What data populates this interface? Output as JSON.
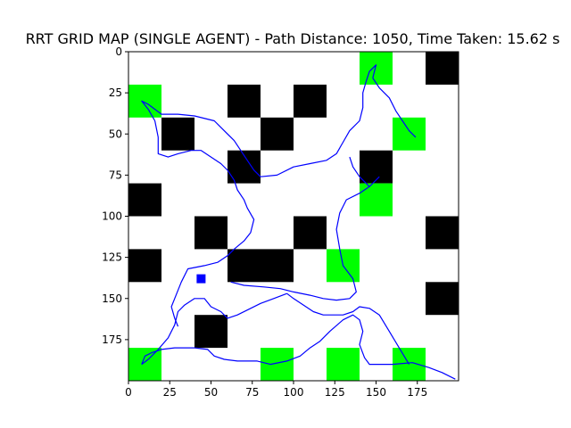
{
  "chart_data": {
    "type": "heatmap",
    "title": "RRT GRID MAP (SINGLE AGENT) - Path Distance: 1050, Time Taken: 15.62 s",
    "xlabel": "",
    "ylabel": "",
    "xlim": [
      0,
      200
    ],
    "ylim": [
      200,
      0
    ],
    "y_inverted": true,
    "grid": false,
    "cell_size": 20,
    "xticks": [
      0,
      25,
      50,
      75,
      100,
      125,
      150,
      175
    ],
    "yticks": [
      0,
      25,
      50,
      75,
      100,
      125,
      150,
      175
    ],
    "colors": {
      "obstacle": "#000000",
      "goal": "#00ff00",
      "free": "#ffffff",
      "path": "#0000ff",
      "agent": "#0000ff"
    },
    "obstacles": [
      [
        180,
        0
      ],
      [
        60,
        20
      ],
      [
        100,
        20
      ],
      [
        20,
        40
      ],
      [
        80,
        40
      ],
      [
        60,
        60
      ],
      [
        140,
        60
      ],
      [
        0,
        80
      ],
      [
        40,
        100
      ],
      [
        100,
        100
      ],
      [
        180,
        100
      ],
      [
        0,
        120
      ],
      [
        60,
        120
      ],
      [
        80,
        120
      ],
      [
        180,
        140
      ],
      [
        40,
        160
      ]
    ],
    "goals": [
      [
        140,
        0
      ],
      [
        0,
        20
      ],
      [
        160,
        40
      ],
      [
        140,
        80
      ],
      [
        120,
        120
      ],
      [
        0,
        180
      ],
      [
        80,
        180
      ],
      [
        120,
        180
      ],
      [
        160,
        180
      ]
    ],
    "agent": [
      44,
      138
    ],
    "paths": [
      [
        [
          8,
          190
        ],
        [
          10,
          185
        ],
        [
          14,
          183
        ],
        [
          20,
          181
        ],
        [
          28,
          180
        ],
        [
          40,
          180
        ],
        [
          48,
          181
        ],
        [
          52,
          185
        ],
        [
          58,
          187
        ],
        [
          66,
          188
        ],
        [
          78,
          188
        ],
        [
          86,
          190
        ],
        [
          96,
          188
        ],
        [
          104,
          185
        ],
        [
          110,
          180
        ],
        [
          116,
          176
        ],
        [
          122,
          170
        ],
        [
          130,
          163
        ],
        [
          136,
          160
        ],
        [
          140,
          163
        ],
        [
          142,
          170
        ],
        [
          140,
          178
        ],
        [
          143,
          186
        ],
        [
          146,
          190
        ],
        [
          160,
          190
        ],
        [
          172,
          189
        ],
        [
          182,
          192
        ],
        [
          190,
          195
        ],
        [
          198,
          199
        ]
      ],
      [
        [
          8,
          190
        ],
        [
          12,
          187
        ],
        [
          18,
          181
        ],
        [
          24,
          174
        ],
        [
          28,
          166
        ],
        [
          30,
          158
        ],
        [
          34,
          154
        ],
        [
          40,
          150
        ],
        [
          46,
          150
        ],
        [
          50,
          155
        ],
        [
          56,
          158
        ],
        [
          60,
          162
        ],
        [
          66,
          160
        ],
        [
          72,
          157
        ],
        [
          80,
          153
        ],
        [
          88,
          150
        ],
        [
          96,
          147
        ]
      ],
      [
        [
          96,
          147
        ],
        [
          100,
          150
        ],
        [
          106,
          154
        ],
        [
          112,
          158
        ],
        [
          118,
          160
        ],
        [
          124,
          160
        ],
        [
          130,
          160
        ],
        [
          136,
          158
        ],
        [
          140,
          155
        ],
        [
          146,
          156
        ],
        [
          152,
          160
        ],
        [
          158,
          170
        ],
        [
          164,
          180
        ],
        [
          170,
          190
        ]
      ],
      [
        [
          30,
          167
        ],
        [
          28,
          162
        ],
        [
          26,
          155
        ],
        [
          28,
          150
        ],
        [
          32,
          140
        ],
        [
          36,
          132
        ],
        [
          46,
          130
        ],
        [
          54,
          128
        ],
        [
          60,
          124
        ],
        [
          64,
          120
        ],
        [
          70,
          115
        ],
        [
          74,
          110
        ],
        [
          76,
          102
        ],
        [
          72,
          95
        ],
        [
          70,
          90
        ],
        [
          66,
          84
        ],
        [
          64,
          78
        ],
        [
          60,
          72
        ],
        [
          56,
          68
        ],
        [
          50,
          64
        ],
        [
          44,
          60
        ],
        [
          38,
          60
        ],
        [
          30,
          62
        ],
        [
          24,
          64
        ],
        [
          18,
          62
        ],
        [
          18,
          52
        ],
        [
          16,
          42
        ],
        [
          12,
          35
        ],
        [
          8,
          30
        ],
        [
          12,
          32
        ],
        [
          20,
          38
        ],
        [
          30,
          38
        ],
        [
          40,
          39
        ],
        [
          52,
          42
        ],
        [
          58,
          48
        ],
        [
          64,
          54
        ],
        [
          68,
          60
        ],
        [
          72,
          66
        ],
        [
          76,
          72
        ],
        [
          80,
          76
        ],
        [
          90,
          75
        ],
        [
          100,
          70
        ],
        [
          110,
          68
        ],
        [
          120,
          66
        ],
        [
          126,
          62
        ],
        [
          130,
          55
        ],
        [
          134,
          48
        ],
        [
          140,
          42
        ],
        [
          142,
          34
        ],
        [
          142,
          25
        ],
        [
          144,
          18
        ],
        [
          146,
          12
        ],
        [
          150,
          8
        ],
        [
          148,
          16
        ]
      ],
      [
        [
          148,
          16
        ],
        [
          152,
          22
        ],
        [
          158,
          28
        ],
        [
          162,
          36
        ],
        [
          166,
          42
        ],
        [
          170,
          48
        ],
        [
          174,
          52
        ]
      ],
      [
        [
          62,
          140
        ],
        [
          70,
          142
        ],
        [
          82,
          143
        ],
        [
          92,
          144
        ],
        [
          100,
          146
        ],
        [
          110,
          148
        ],
        [
          118,
          150
        ],
        [
          126,
          151
        ],
        [
          134,
          150
        ],
        [
          138,
          146
        ],
        [
          136,
          138
        ],
        [
          130,
          130
        ],
        [
          128,
          120
        ],
        [
          126,
          108
        ],
        [
          128,
          98
        ],
        [
          132,
          90
        ],
        [
          140,
          86
        ],
        [
          146,
          82
        ],
        [
          152,
          76
        ]
      ],
      [
        [
          146,
          82
        ],
        [
          140,
          76
        ],
        [
          136,
          70
        ],
        [
          134,
          64
        ]
      ]
    ]
  }
}
